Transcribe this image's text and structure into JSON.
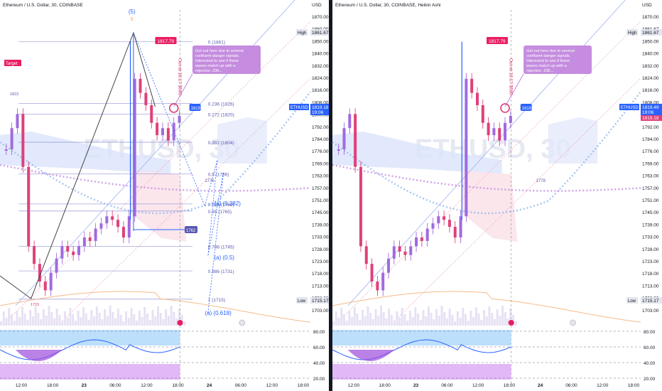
{
  "chart_data": [
    {
      "type": "candlestick",
      "title": "Ethereum / U.S. Dollar, 30, COINBASE",
      "watermark": "ETHUSD, 30",
      "currency_label": "USD",
      "y_ticks": [
        1870.0,
        1860.0,
        1850.0,
        1840.0,
        1832.0,
        1824.0,
        1816.0,
        1808.0,
        1800.0,
        1792.0,
        1784.0,
        1776.0,
        1769.0,
        1763.0,
        1757.0,
        1751.0,
        1745.0,
        1739.0,
        1733.0,
        1728.0,
        1723.0,
        1718.0,
        1713.0,
        1708.0,
        1703.0
      ],
      "x_ticks": [
        "12:00",
        "18:00",
        "23",
        "06:00",
        "12:00",
        "18:00",
        "24",
        "06:00",
        "12:00",
        "18:00"
      ],
      "ylim": [
        1700,
        1875
      ],
      "fib_levels": [
        {
          "label": "0 (1861)",
          "price": 1861
        },
        {
          "label": "0.236 (1826)",
          "price": 1826
        },
        {
          "label": "0.272 (1820)",
          "price": 1820
        },
        {
          "label": "0.382 (1804)",
          "price": 1804
        },
        {
          "label": "0.5 (1786)",
          "price": 1786
        },
        {
          "label": "0.618 (1769)",
          "price": 1769
        },
        {
          "label": "0.65 (1765)",
          "price": 1765
        },
        {
          "label": "0.786 (1745)",
          "price": 1745
        },
        {
          "label": "0.886 (1731)",
          "price": 1731
        },
        {
          "label": "1 (1715)",
          "price": 1715
        }
      ],
      "high_label": "High",
      "high_value": "1861.67",
      "low_label": "Low",
      "low_value": "1715.17",
      "symbol_tag": "ETHUSD",
      "last_price": "1819.18",
      "countdown": "19:06",
      "price_marker": "1817.79",
      "wave_label": "(5)",
      "wave_sublabel": "5",
      "target_label": "Target",
      "side_tag_a": "1619",
      "side_tag_b": "1762",
      "label_823": "1823",
      "label_1776": "1776",
      "label_1715b": "1715",
      "projections": [
        "(a) (0.382)",
        "(a) (0.5)",
        "(a) (0.618)"
      ],
      "annotation": "Got out here due to several confluent danger signals. Interested to see if these waves match up with a rejection .236...",
      "rotated_note": "Out at 18:17 $500",
      "rsi_ticks": [
        "80.00",
        "60.00",
        "40.00",
        "20.00"
      ],
      "candles": [
        1800,
        1812,
        1820,
        1790,
        1745,
        1735,
        1725,
        1720,
        1730,
        1738,
        1745,
        1742,
        1740,
        1745,
        1750,
        1748,
        1755,
        1758,
        1762,
        1760,
        1756,
        1750,
        1762,
        1840,
        1832,
        1825,
        1815,
        1808,
        1812,
        1805,
        1815,
        1819
      ]
    },
    {
      "type": "candlestick",
      "title": "Ethereum / U.S. Dollar, 30, COINBASE, Heikin Ashi",
      "watermark": "ETHUSD, 30",
      "currency_label": "USD",
      "y_ticks": [
        1870.0,
        1861.67,
        1850.0,
        1840.0,
        1832.0,
        1824.0,
        1816.0,
        1808.0,
        1800.0,
        1792.0,
        1784.0,
        1776.0,
        1769.0,
        1763.0,
        1757.0,
        1751.0,
        1745.0,
        1739.0,
        1733.0,
        1728.0,
        1723.0,
        1718.0,
        1713.0,
        1708.0,
        1703.0
      ],
      "x_ticks": [
        "12:00",
        "18:00",
        "23",
        "06:00",
        "12:00",
        "18:00",
        "24",
        "06:00",
        "12:00",
        "18:00"
      ],
      "ylim": [
        1700,
        1875
      ],
      "high_label": "High",
      "high_value": "1861.67",
      "low_label": "Low",
      "low_value": "1715.17",
      "symbol_tag": "ETHUSD",
      "last_price": "1819.49",
      "countdown": "19:06",
      "last_price_b": "1819.18",
      "price_marker": "1817.79",
      "side_tag_a": "1619",
      "label_1776": "1778"
    }
  ]
}
